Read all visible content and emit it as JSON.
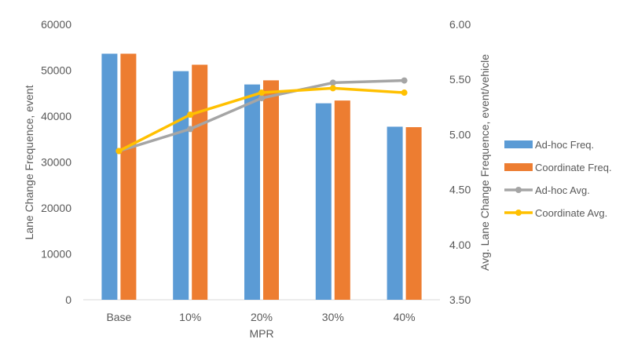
{
  "chart_data": {
    "type": "bar",
    "title": "",
    "xlabel": "MPR",
    "ylabel": "Lane Change Frequence, event",
    "y2label": "Avg. Lane Change Frequence, event/vehicle",
    "categories": [
      "Base",
      "10%",
      "20%",
      "30%",
      "40%"
    ],
    "ylim": [
      0,
      60000
    ],
    "y_ticks": [
      0,
      10000,
      20000,
      30000,
      40000,
      50000,
      60000
    ],
    "y_tick_labels": [
      "0",
      "10000",
      "20000",
      "30000",
      "40000",
      "50000",
      "60000"
    ],
    "y2lim": [
      3.5,
      6.0
    ],
    "y2_ticks": [
      3.5,
      4.0,
      4.5,
      5.0,
      5.5,
      6.0
    ],
    "y2_tick_labels": [
      "3.50",
      "4.00",
      "4.50",
      "5.00",
      "5.50",
      "6.00"
    ],
    "grid": false,
    "legend_position": "right",
    "bar_series": [
      {
        "name": "Ad-hoc Freq.",
        "color": "#5B9BD5",
        "values": [
          53600,
          49800,
          46900,
          42800,
          37700
        ]
      },
      {
        "name": "Coordinate Freq.",
        "color": "#ED7D31",
        "values": [
          53600,
          51200,
          47800,
          43400,
          37600
        ]
      }
    ],
    "line_series": [
      {
        "name": "Ad-hoc  Avg.",
        "color": "#A5A5A5",
        "axis": "right",
        "values": [
          4.85,
          5.05,
          5.33,
          5.47,
          5.49
        ]
      },
      {
        "name": "Coordinate Avg.",
        "color": "#FFC000",
        "axis": "right",
        "values": [
          4.85,
          5.18,
          5.38,
          5.42,
          5.38
        ]
      }
    ]
  }
}
